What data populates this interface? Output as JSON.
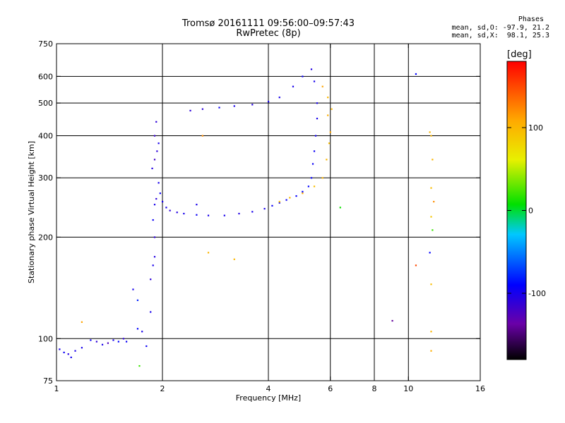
{
  "header": {
    "title": "Tromsø 20161111 09:56:00–09:57:43",
    "subtitle": "RwPretec (8p)"
  },
  "phases_box": {
    "heading": "Phases",
    "line_o": "mean, sd,O: -97.9, 21.2",
    "line_x": "mean, sd,X:  98.1, 25.3"
  },
  "colorbar": {
    "unit": "[deg]",
    "ticks": [
      100,
      0,
      -100
    ],
    "tick_labels": [
      "100",
      "0",
      "-100"
    ],
    "range": [
      -180,
      180
    ],
    "colormap": "rainbow (black-purple-blue-cyan-green-yellow-orange-red)"
  },
  "chart_data": {
    "type": "scatter",
    "xlabel": "Frequency [MHz]",
    "ylabel": "Stationary phase Virtual Height [km]",
    "xscale": "log",
    "yscale": "log",
    "xlim": [
      1,
      16
    ],
    "ylim": [
      75,
      750
    ],
    "xticks": [
      1,
      2,
      4,
      6,
      8,
      10,
      16
    ],
    "xtick_labels": [
      "1",
      "2",
      "4",
      "6",
      "8",
      "10",
      "16"
    ],
    "yticks": [
      75,
      100,
      200,
      300,
      400,
      500,
      600,
      750
    ],
    "ytick_labels": [
      "75",
      "100",
      "200",
      "300",
      "400",
      "500",
      "600",
      "750"
    ],
    "grid": true,
    "grid_x": [
      2,
      4,
      6,
      8,
      10
    ],
    "grid_y": [
      100,
      200,
      300,
      400,
      500,
      600
    ],
    "series": [
      {
        "color_by": "phase",
        "points": [
          [
            1.02,
            93,
            -100
          ],
          [
            1.05,
            91,
            -95
          ],
          [
            1.08,
            90,
            -105
          ],
          [
            1.1,
            88,
            -98
          ],
          [
            1.13,
            92,
            -102
          ],
          [
            1.18,
            94,
            -100
          ],
          [
            1.25,
            99,
            -95
          ],
          [
            1.3,
            98,
            -110
          ],
          [
            1.35,
            96,
            -100
          ],
          [
            1.4,
            97,
            -125
          ],
          [
            1.45,
            99,
            -100
          ],
          [
            1.5,
            98,
            -90
          ],
          [
            1.55,
            100,
            -110
          ],
          [
            1.58,
            98,
            -95
          ],
          [
            1.7,
            107,
            -90
          ],
          [
            1.72,
            83,
            20
          ],
          [
            1.75,
            105,
            -100
          ],
          [
            1.18,
            112,
            110
          ],
          [
            1.65,
            140,
            -100
          ],
          [
            1.7,
            130,
            -80
          ],
          [
            1.8,
            95,
            -95
          ],
          [
            1.85,
            120,
            -100
          ],
          [
            1.85,
            150,
            -110
          ],
          [
            1.88,
            165,
            -100
          ],
          [
            1.9,
            175,
            -105
          ],
          [
            1.9,
            200,
            -110
          ],
          [
            1.88,
            225,
            -95
          ],
          [
            1.9,
            250,
            -100
          ],
          [
            1.92,
            260,
            -110
          ],
          [
            1.95,
            290,
            -100
          ],
          [
            1.87,
            320,
            -105
          ],
          [
            1.9,
            340,
            -120
          ],
          [
            1.93,
            360,
            -110
          ],
          [
            1.95,
            380,
            -100
          ],
          [
            1.9,
            400,
            -115
          ],
          [
            1.92,
            440,
            -110
          ],
          [
            1.97,
            270,
            -95
          ],
          [
            2.0,
            255,
            -100
          ],
          [
            2.05,
            245,
            -100
          ],
          [
            2.1,
            240,
            -110
          ],
          [
            2.2,
            237,
            -105
          ],
          [
            2.3,
            235,
            -100
          ],
          [
            2.5,
            233,
            -95
          ],
          [
            2.7,
            232,
            -100
          ],
          [
            3.0,
            232,
            -100
          ],
          [
            3.3,
            235,
            -105
          ],
          [
            3.6,
            238,
            -100
          ],
          [
            3.9,
            243,
            -100
          ],
          [
            4.1,
            248,
            -95
          ],
          [
            4.3,
            253,
            -95
          ],
          [
            4.5,
            258,
            -95
          ],
          [
            4.8,
            265,
            -92
          ],
          [
            5.0,
            273,
            -90
          ],
          [
            5.2,
            283,
            -90
          ],
          [
            5.3,
            300,
            -92
          ],
          [
            5.35,
            330,
            -95
          ],
          [
            5.4,
            360,
            -95
          ],
          [
            5.45,
            400,
            -98
          ],
          [
            5.5,
            450,
            -100
          ],
          [
            5.5,
            500,
            -100
          ],
          [
            5.4,
            580,
            -100
          ],
          [
            5.3,
            630,
            -105
          ],
          [
            5.0,
            600,
            -95
          ],
          [
            4.7,
            560,
            -100
          ],
          [
            4.3,
            520,
            -100
          ],
          [
            4.0,
            505,
            -100
          ],
          [
            3.6,
            495,
            -105
          ],
          [
            3.2,
            490,
            -100
          ],
          [
            2.9,
            485,
            -95
          ],
          [
            2.6,
            480,
            -110
          ],
          [
            2.4,
            475,
            -110
          ],
          [
            2.5,
            250,
            -100
          ],
          [
            4.3,
            255,
            95
          ],
          [
            4.6,
            262,
            100
          ],
          [
            5.0,
            270,
            105
          ],
          [
            5.4,
            283,
            95
          ],
          [
            5.7,
            300,
            100
          ],
          [
            5.85,
            340,
            100
          ],
          [
            5.95,
            380,
            95
          ],
          [
            6.0,
            410,
            110
          ],
          [
            5.9,
            460,
            105
          ],
          [
            6.05,
            480,
            100
          ],
          [
            5.7,
            560,
            110
          ],
          [
            5.9,
            520,
            100
          ],
          [
            2.6,
            400,
            120
          ],
          [
            2.7,
            180,
            100
          ],
          [
            3.2,
            172,
            100
          ],
          [
            6.4,
            245,
            10
          ],
          [
            10.5,
            610,
            -90
          ],
          [
            10.5,
            165,
            150
          ],
          [
            9.0,
            113,
            -140
          ],
          [
            11.5,
            410,
            100
          ],
          [
            11.6,
            400,
            100
          ],
          [
            11.7,
            340,
            100
          ],
          [
            11.6,
            280,
            95
          ],
          [
            11.8,
            255,
            120
          ],
          [
            11.6,
            230,
            90
          ],
          [
            11.7,
            210,
            20
          ],
          [
            11.5,
            180,
            -90
          ],
          [
            11.6,
            145,
            95
          ],
          [
            11.6,
            105,
            100
          ],
          [
            11.6,
            92,
            105
          ]
        ]
      }
    ]
  }
}
